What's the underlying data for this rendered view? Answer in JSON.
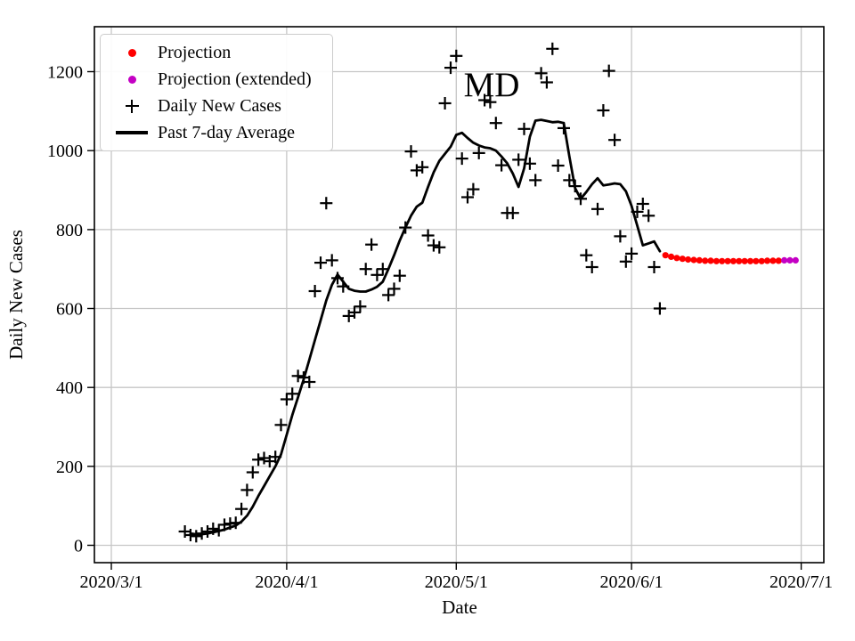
{
  "chart_data": {
    "type": "line",
    "title": "MD",
    "xlabel": "Date",
    "ylabel": "Daily New Cases",
    "x_range": [
      "2020-02-27",
      "2020-07-05"
    ],
    "y_range": [
      -44,
      1314
    ],
    "grid": true,
    "grid_color": "#c6c6c6",
    "legend_position": "upper left",
    "x_ticks": [
      {
        "date": "2020-03-01",
        "label": "2020/3/1"
      },
      {
        "date": "2020-04-01",
        "label": "2020/4/1"
      },
      {
        "date": "2020-05-01",
        "label": "2020/5/1"
      },
      {
        "date": "2020-06-01",
        "label": "2020/6/1"
      },
      {
        "date": "2020-07-01",
        "label": "2020/7/1"
      }
    ],
    "y_ticks": [
      0,
      200,
      400,
      600,
      800,
      1000,
      1200
    ],
    "legend": [
      {
        "label": "Projection",
        "marker": "dot",
        "color": "#ff0000"
      },
      {
        "label": "Projection (extended)",
        "marker": "dot",
        "color": "#c400c4"
      },
      {
        "label": "Daily New Cases",
        "marker": "plus",
        "color": "#000000"
      },
      {
        "label": "Past 7-day Average",
        "marker": "line",
        "color": "#000000"
      }
    ],
    "series": [
      {
        "name": "Past 7-day Average",
        "type": "line",
        "color": "#000000",
        "width": 2.8,
        "points": [
          [
            "2020-03-15",
            30
          ],
          [
            "2020-03-16",
            28
          ],
          [
            "2020-03-17",
            28
          ],
          [
            "2020-03-18",
            30
          ],
          [
            "2020-03-19",
            33
          ],
          [
            "2020-03-20",
            36
          ],
          [
            "2020-03-21",
            40
          ],
          [
            "2020-03-22",
            45
          ],
          [
            "2020-03-23",
            50
          ],
          [
            "2020-03-24",
            60
          ],
          [
            "2020-03-25",
            75
          ],
          [
            "2020-03-26",
            98
          ],
          [
            "2020-03-27",
            125
          ],
          [
            "2020-03-28",
            150
          ],
          [
            "2020-03-29",
            175
          ],
          [
            "2020-03-30",
            200
          ],
          [
            "2020-03-31",
            230
          ],
          [
            "2020-04-01",
            280
          ],
          [
            "2020-04-02",
            330
          ],
          [
            "2020-04-03",
            375
          ],
          [
            "2020-04-04",
            420
          ],
          [
            "2020-04-05",
            470
          ],
          [
            "2020-04-06",
            520
          ],
          [
            "2020-04-07",
            570
          ],
          [
            "2020-04-08",
            620
          ],
          [
            "2020-04-09",
            660
          ],
          [
            "2020-04-10",
            686
          ],
          [
            "2020-04-11",
            668
          ],
          [
            "2020-04-12",
            650
          ],
          [
            "2020-04-13",
            645
          ],
          [
            "2020-04-14",
            643
          ],
          [
            "2020-04-15",
            643
          ],
          [
            "2020-04-16",
            648
          ],
          [
            "2020-04-17",
            655
          ],
          [
            "2020-04-18",
            668
          ],
          [
            "2020-04-19",
            700
          ],
          [
            "2020-04-20",
            735
          ],
          [
            "2020-04-21",
            772
          ],
          [
            "2020-04-22",
            805
          ],
          [
            "2020-04-23",
            835
          ],
          [
            "2020-04-24",
            858
          ],
          [
            "2020-04-25",
            868
          ],
          [
            "2020-04-26",
            908
          ],
          [
            "2020-04-27",
            945
          ],
          [
            "2020-04-28",
            974
          ],
          [
            "2020-04-29",
            992
          ],
          [
            "2020-04-30",
            1010
          ],
          [
            "2020-05-01",
            1040
          ],
          [
            "2020-05-02",
            1045
          ],
          [
            "2020-05-03",
            1032
          ],
          [
            "2020-05-04",
            1020
          ],
          [
            "2020-05-05",
            1013
          ],
          [
            "2020-05-06",
            1008
          ],
          [
            "2020-05-07",
            1006
          ],
          [
            "2020-05-08",
            1000
          ],
          [
            "2020-05-09",
            985
          ],
          [
            "2020-05-10",
            968
          ],
          [
            "2020-05-11",
            942
          ],
          [
            "2020-05-12",
            908
          ],
          [
            "2020-05-13",
            955
          ],
          [
            "2020-05-14",
            1035
          ],
          [
            "2020-05-15",
            1076
          ],
          [
            "2020-05-16",
            1078
          ],
          [
            "2020-05-17",
            1075
          ],
          [
            "2020-05-18",
            1072
          ],
          [
            "2020-05-19",
            1073
          ],
          [
            "2020-05-20",
            1070
          ],
          [
            "2020-05-21",
            985
          ],
          [
            "2020-05-22",
            905
          ],
          [
            "2020-05-23",
            878
          ],
          [
            "2020-05-24",
            895
          ],
          [
            "2020-05-25",
            915
          ],
          [
            "2020-05-26",
            930
          ],
          [
            "2020-05-27",
            912
          ],
          [
            "2020-05-28",
            914
          ],
          [
            "2020-05-29",
            917
          ],
          [
            "2020-05-30",
            915
          ],
          [
            "2020-05-31",
            897
          ],
          [
            "2020-06-01",
            860
          ],
          [
            "2020-06-02",
            810
          ],
          [
            "2020-06-03",
            760
          ],
          [
            "2020-06-04",
            765
          ],
          [
            "2020-06-05",
            770
          ],
          [
            "2020-06-06",
            745
          ]
        ]
      },
      {
        "name": "Daily New Cases",
        "type": "scatter",
        "marker": "plus",
        "color": "#000000",
        "points": [
          [
            "2020-03-14",
            35
          ],
          [
            "2020-03-15",
            26
          ],
          [
            "2020-03-16",
            23
          ],
          [
            "2020-03-17",
            30
          ],
          [
            "2020-03-18",
            35
          ],
          [
            "2020-03-19",
            42
          ],
          [
            "2020-03-20",
            38
          ],
          [
            "2020-03-21",
            52
          ],
          [
            "2020-03-22",
            55
          ],
          [
            "2020-03-23",
            57
          ],
          [
            "2020-03-24",
            92
          ],
          [
            "2020-03-25",
            140
          ],
          [
            "2020-03-26",
            185
          ],
          [
            "2020-03-27",
            217
          ],
          [
            "2020-03-28",
            221
          ],
          [
            "2020-03-29",
            213
          ],
          [
            "2020-03-30",
            224
          ],
          [
            "2020-03-31",
            305
          ],
          [
            "2020-04-01",
            370
          ],
          [
            "2020-04-02",
            384
          ],
          [
            "2020-04-03",
            429
          ],
          [
            "2020-04-04",
            425
          ],
          [
            "2020-04-05",
            414
          ],
          [
            "2020-04-06",
            644
          ],
          [
            "2020-04-07",
            716
          ],
          [
            "2020-04-08",
            867
          ],
          [
            "2020-04-09",
            722
          ],
          [
            "2020-04-10",
            677
          ],
          [
            "2020-04-11",
            656
          ],
          [
            "2020-04-12",
            581
          ],
          [
            "2020-04-13",
            590
          ],
          [
            "2020-04-14",
            605
          ],
          [
            "2020-04-15",
            700
          ],
          [
            "2020-04-16",
            762
          ],
          [
            "2020-04-17",
            685
          ],
          [
            "2020-04-18",
            700
          ],
          [
            "2020-04-19",
            634
          ],
          [
            "2020-04-20",
            650
          ],
          [
            "2020-04-21",
            683
          ],
          [
            "2020-04-22",
            805
          ],
          [
            "2020-04-23",
            998
          ],
          [
            "2020-04-24",
            950
          ],
          [
            "2020-04-25",
            958
          ],
          [
            "2020-04-26",
            785
          ],
          [
            "2020-04-27",
            760
          ],
          [
            "2020-04-28",
            755
          ],
          [
            "2020-04-29",
            1120
          ],
          [
            "2020-04-30",
            1210
          ],
          [
            "2020-05-01",
            1240
          ],
          [
            "2020-05-02",
            980
          ],
          [
            "2020-05-03",
            882
          ],
          [
            "2020-05-04",
            902
          ],
          [
            "2020-05-05",
            994
          ],
          [
            "2020-05-06",
            1128
          ],
          [
            "2020-05-07",
            1123
          ],
          [
            "2020-05-08",
            1070
          ],
          [
            "2020-05-09",
            963
          ],
          [
            "2020-05-10",
            842
          ],
          [
            "2020-05-11",
            842
          ],
          [
            "2020-05-12",
            977
          ],
          [
            "2020-05-13",
            1055
          ],
          [
            "2020-05-14",
            967
          ],
          [
            "2020-05-15",
            925
          ],
          [
            "2020-05-16",
            1196
          ],
          [
            "2020-05-17",
            1173
          ],
          [
            "2020-05-18",
            1258
          ],
          [
            "2020-05-19",
            962
          ],
          [
            "2020-05-20",
            1057
          ],
          [
            "2020-05-21",
            925
          ],
          [
            "2020-05-22",
            910
          ],
          [
            "2020-05-23",
            878
          ],
          [
            "2020-05-24",
            735
          ],
          [
            "2020-05-25",
            705
          ],
          [
            "2020-05-26",
            852
          ],
          [
            "2020-05-27",
            1102
          ],
          [
            "2020-05-28",
            1202
          ],
          [
            "2020-05-29",
            1027
          ],
          [
            "2020-05-30",
            783
          ],
          [
            "2020-05-31",
            719
          ],
          [
            "2020-06-01",
            739
          ],
          [
            "2020-06-02",
            845
          ],
          [
            "2020-06-03",
            865
          ],
          [
            "2020-06-04",
            835
          ],
          [
            "2020-06-05",
            705
          ],
          [
            "2020-06-06",
            600
          ]
        ]
      },
      {
        "name": "Projection",
        "type": "scatter",
        "marker": "dot",
        "color": "#ff0000",
        "points": [
          [
            "2020-06-07",
            735
          ],
          [
            "2020-06-08",
            731
          ],
          [
            "2020-06-09",
            728
          ],
          [
            "2020-06-10",
            726
          ],
          [
            "2020-06-11",
            724
          ],
          [
            "2020-06-12",
            723
          ],
          [
            "2020-06-13",
            722
          ],
          [
            "2020-06-14",
            721
          ],
          [
            "2020-06-15",
            721
          ],
          [
            "2020-06-16",
            720
          ],
          [
            "2020-06-17",
            720
          ],
          [
            "2020-06-18",
            720
          ],
          [
            "2020-06-19",
            720
          ],
          [
            "2020-06-20",
            720
          ],
          [
            "2020-06-21",
            720
          ],
          [
            "2020-06-22",
            720
          ],
          [
            "2020-06-23",
            720
          ],
          [
            "2020-06-24",
            720
          ],
          [
            "2020-06-25",
            721
          ],
          [
            "2020-06-26",
            721
          ],
          [
            "2020-06-27",
            721
          ]
        ]
      },
      {
        "name": "Projection (extended)",
        "type": "scatter",
        "marker": "dot",
        "color": "#c400c4",
        "points": [
          [
            "2020-06-28",
            722
          ],
          [
            "2020-06-29",
            722
          ],
          [
            "2020-06-30",
            722
          ]
        ]
      }
    ]
  }
}
